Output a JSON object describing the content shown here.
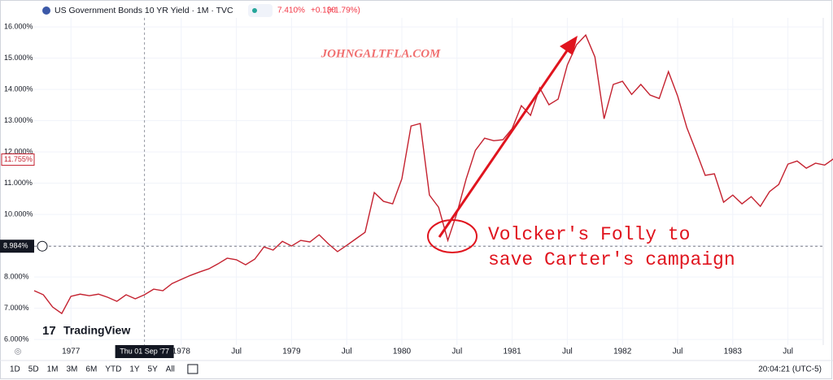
{
  "header": {
    "symbol": "US Government Bonds 10 YR Yield · 1M · TVC",
    "last": "7.410%",
    "change": "+0.130",
    "change_pct": "(+1.79%)"
  },
  "watermark": "JOHNGALTFLA.COM",
  "logo": "TradingView",
  "toolbar": {
    "ranges": [
      "1D",
      "5D",
      "1M",
      "3M",
      "6M",
      "YTD",
      "1Y",
      "5Y",
      "All"
    ],
    "clock": "20:04:21 (UTC-5)"
  },
  "chart_data": {
    "type": "line",
    "annotation": [
      "Volcker's Folly to",
      "save Carter's campaign"
    ],
    "x": [
      "1976-09",
      "1976-10",
      "1976-11",
      "1976-12",
      "1977-01",
      "1977-02",
      "1977-03",
      "1977-04",
      "1977-05",
      "1977-06",
      "1977-07",
      "1977-08",
      "1977-09",
      "1977-10",
      "1977-11",
      "1977-12",
      "1978-01",
      "1978-02",
      "1978-03",
      "1978-04",
      "1978-05",
      "1978-06",
      "1978-07",
      "1978-08",
      "1978-09",
      "1978-10",
      "1978-11",
      "1978-12",
      "1979-01",
      "1979-02",
      "1979-03",
      "1979-04",
      "1979-05",
      "1979-06",
      "1979-07",
      "1979-08",
      "1979-09",
      "1979-10",
      "1979-11",
      "1979-12",
      "1980-01",
      "1980-02",
      "1980-03",
      "1980-04",
      "1980-05",
      "1980-06",
      "1980-07",
      "1980-08",
      "1980-09",
      "1980-10",
      "1980-11",
      "1980-12",
      "1981-01",
      "1981-02",
      "1981-03",
      "1981-04",
      "1981-05",
      "1981-06",
      "1981-07",
      "1981-08",
      "1981-09",
      "1981-10",
      "1981-11",
      "1981-12",
      "1982-01",
      "1982-02",
      "1982-03",
      "1982-04",
      "1982-05",
      "1982-06",
      "1982-07",
      "1982-08",
      "1982-09",
      "1982-10",
      "1982-11",
      "1982-12",
      "1983-01",
      "1983-02",
      "1983-03",
      "1983-04",
      "1983-05",
      "1983-06",
      "1983-07",
      "1983-08",
      "1983-09",
      "1983-10",
      "1983-11",
      "1983-12"
    ],
    "series": [
      {
        "name": "US10Y",
        "color": "#c4212f",
        "values": [
          7.56,
          7.43,
          7.04,
          6.83,
          7.38,
          7.45,
          7.4,
          7.45,
          7.35,
          7.22,
          7.43,
          7.3,
          7.43,
          7.61,
          7.56,
          7.79,
          7.92,
          8.05,
          8.16,
          8.26,
          8.42,
          8.6,
          8.55,
          8.39,
          8.57,
          8.96,
          8.86,
          9.14,
          8.99,
          9.17,
          9.12,
          9.35,
          9.06,
          8.81,
          9.01,
          9.22,
          9.43,
          10.7,
          10.42,
          10.34,
          11.14,
          12.83,
          12.91,
          10.62,
          10.23,
          9.17,
          10.05,
          11.14,
          12.05,
          12.44,
          12.36,
          12.39,
          12.75,
          13.48,
          13.17,
          14.05,
          13.51,
          13.69,
          14.78,
          15.43,
          15.74,
          15.04,
          13.06,
          14.16,
          14.26,
          13.84,
          14.16,
          13.82,
          13.71,
          14.57,
          13.79,
          12.78,
          12.03,
          11.25,
          11.3,
          10.39,
          10.62,
          10.34,
          10.57,
          10.26,
          10.73,
          10.96,
          11.61,
          11.71,
          11.48,
          11.64,
          11.58,
          11.79
        ]
      }
    ],
    "ylim": [
      5.82,
      16.29
    ],
    "yticks": [
      {
        "value": 6,
        "label": "6.000%"
      },
      {
        "value": 7,
        "label": "7.000%"
      },
      {
        "value": 8,
        "label": "8.000%"
      },
      {
        "value": 9,
        "label": "9.000%"
      },
      {
        "value": 10,
        "label": "10.000%"
      },
      {
        "value": 11,
        "label": "11.000%"
      },
      {
        "value": 12,
        "label": "12.000%"
      },
      {
        "value": 13,
        "label": "13.000%"
      },
      {
        "value": 14,
        "label": "14.000%"
      },
      {
        "value": 15,
        "label": "15.000%"
      },
      {
        "value": 16,
        "label": "16.000%"
      }
    ],
    "xticks": [
      {
        "value": "1977-01",
        "label": "1977"
      },
      {
        "value": "1978-01",
        "label": "1978"
      },
      {
        "value": "1978-07",
        "label": "Jul"
      },
      {
        "value": "1979-01",
        "label": "1979"
      },
      {
        "value": "1979-07",
        "label": "Jul"
      },
      {
        "value": "1980-01",
        "label": "1980"
      },
      {
        "value": "1980-07",
        "label": "Jul"
      },
      {
        "value": "1981-01",
        "label": "1981"
      },
      {
        "value": "1981-07",
        "label": "Jul"
      },
      {
        "value": "1982-01",
        "label": "1982"
      },
      {
        "value": "1982-07",
        "label": "Jul"
      },
      {
        "value": "1983-01",
        "label": "1983"
      },
      {
        "value": "1983-07",
        "label": "Jul"
      }
    ],
    "price_label": {
      "value": 11.755,
      "label": "11.755%"
    },
    "crosshair": {
      "y": {
        "value": 8.984,
        "label": "8.984%"
      },
      "x": {
        "value": "1977-09",
        "label": "Thu 01 Sep '77"
      }
    }
  }
}
